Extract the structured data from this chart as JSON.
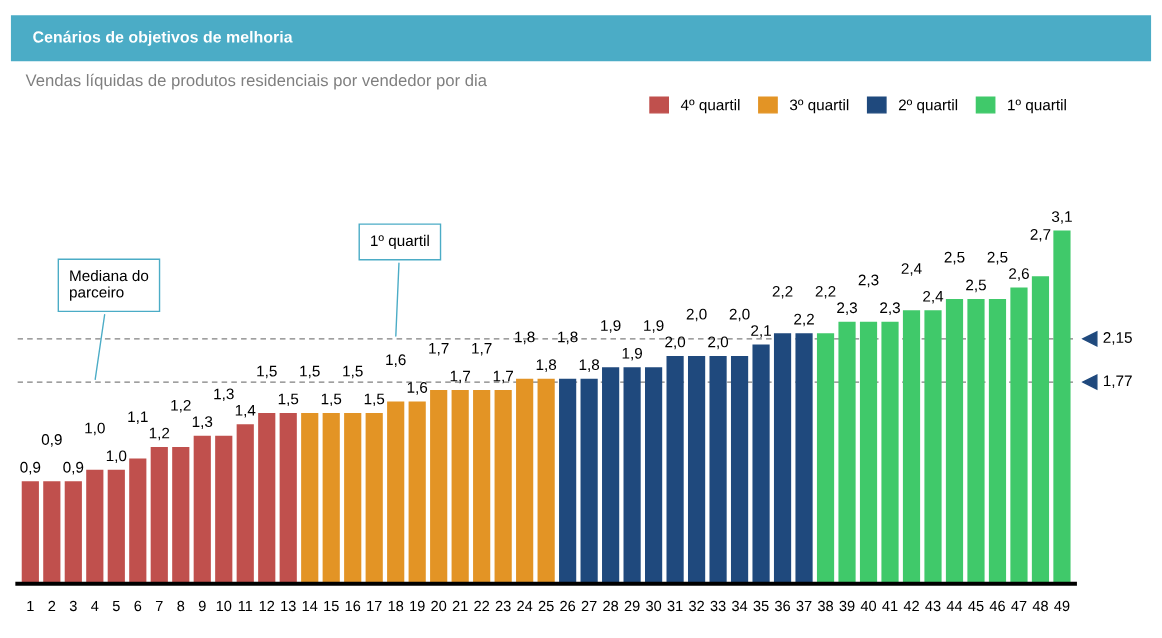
{
  "chart_data": {
    "type": "bar",
    "title": "Cenários de objetivos de melhoria",
    "subtitle": "Vendas líquidas de produtos residenciais por vendedor por dia",
    "categories": [
      "1",
      "2",
      "3",
      "4",
      "5",
      "6",
      "7",
      "8",
      "9",
      "10",
      "11",
      "12",
      "13",
      "14",
      "15",
      "16",
      "17",
      "18",
      "19",
      "20",
      "21",
      "22",
      "23",
      "24",
      "25",
      "26",
      "27",
      "28",
      "29",
      "30",
      "31",
      "32",
      "33",
      "34",
      "35",
      "36",
      "37",
      "38",
      "39",
      "40",
      "41",
      "42",
      "43",
      "44",
      "45",
      "46",
      "47",
      "48",
      "49"
    ],
    "series": [
      {
        "name": "4º quartil",
        "color": "#c0504d",
        "values": [
          0.9,
          0.9,
          0.9,
          1.0,
          1.0,
          1.1,
          1.2,
          1.2,
          1.3,
          1.3,
          1.4,
          1.5,
          1.5,
          null,
          null,
          null,
          null,
          null,
          null,
          null,
          null,
          null,
          null,
          null,
          null,
          null,
          null,
          null,
          null,
          null,
          null,
          null,
          null,
          null,
          null,
          null,
          null,
          null,
          null,
          null,
          null,
          null,
          null,
          null,
          null,
          null,
          null,
          null,
          null
        ],
        "value_labels": [
          "0,9",
          "0,9",
          "0,9",
          "1,0",
          "1,0",
          "1,1",
          "1,2",
          "1,2",
          "1,3",
          "1,3",
          "1,4",
          "1,5",
          "1,5",
          null,
          null,
          null,
          null,
          null,
          null,
          null,
          null,
          null,
          null,
          null,
          null,
          null,
          null,
          null,
          null,
          null,
          null,
          null,
          null,
          null,
          null,
          null,
          null,
          null,
          null,
          null,
          null,
          null,
          null,
          null,
          null,
          null,
          null,
          null,
          null
        ]
      },
      {
        "name": "3º quartil",
        "color": "#e39425",
        "values": [
          null,
          null,
          null,
          null,
          null,
          null,
          null,
          null,
          null,
          null,
          null,
          null,
          null,
          1.5,
          1.5,
          1.5,
          1.5,
          1.6,
          1.6,
          1.7,
          1.7,
          1.7,
          1.7,
          1.8,
          1.8,
          null,
          null,
          null,
          null,
          null,
          null,
          null,
          null,
          null,
          null,
          null,
          null,
          null,
          null,
          null,
          null,
          null,
          null,
          null,
          null,
          null,
          null,
          null,
          null
        ],
        "value_labels": [
          null,
          null,
          null,
          null,
          null,
          null,
          null,
          null,
          null,
          null,
          null,
          null,
          null,
          "1,5",
          "1,5",
          "1,5",
          "1,5",
          "1,6",
          "1,6",
          "1,7",
          "1,7",
          "1,7",
          "1,7",
          "1,8",
          "1,8",
          null,
          null,
          null,
          null,
          null,
          null,
          null,
          null,
          null,
          null,
          null,
          null,
          null,
          null,
          null,
          null,
          null,
          null,
          null,
          null,
          null,
          null,
          null,
          null
        ]
      },
      {
        "name": "2º quartil",
        "color": "#1f497d",
        "values": [
          null,
          null,
          null,
          null,
          null,
          null,
          null,
          null,
          null,
          null,
          null,
          null,
          null,
          null,
          null,
          null,
          null,
          null,
          null,
          null,
          null,
          null,
          null,
          null,
          null,
          1.8,
          1.8,
          1.9,
          1.9,
          1.9,
          2.0,
          2.0,
          2.0,
          2.0,
          2.1,
          2.2,
          2.2,
          null,
          null,
          null,
          null,
          null,
          null,
          null,
          null,
          null,
          null,
          null,
          null
        ],
        "value_labels": [
          null,
          null,
          null,
          null,
          null,
          null,
          null,
          null,
          null,
          null,
          null,
          null,
          null,
          null,
          null,
          null,
          null,
          null,
          null,
          null,
          null,
          null,
          null,
          null,
          null,
          "1,8",
          "1,8",
          "1,9",
          "1,9",
          "1,9",
          "2,0",
          "2,0",
          "2,0",
          "2,0",
          "2,1",
          "2,2",
          "2,2",
          null,
          null,
          null,
          null,
          null,
          null,
          null,
          null,
          null,
          null,
          null,
          null
        ]
      },
      {
        "name": "1º quartil",
        "color": "#40c96a",
        "values": [
          null,
          null,
          null,
          null,
          null,
          null,
          null,
          null,
          null,
          null,
          null,
          null,
          null,
          null,
          null,
          null,
          null,
          null,
          null,
          null,
          null,
          null,
          null,
          null,
          null,
          null,
          null,
          null,
          null,
          null,
          null,
          null,
          null,
          null,
          null,
          null,
          null,
          2.2,
          2.3,
          2.3,
          2.3,
          2.4,
          2.4,
          2.5,
          2.5,
          2.5,
          2.6,
          2.7,
          3.1
        ],
        "value_labels": [
          null,
          null,
          null,
          null,
          null,
          null,
          null,
          null,
          null,
          null,
          null,
          null,
          null,
          null,
          null,
          null,
          null,
          null,
          null,
          null,
          null,
          null,
          null,
          null,
          null,
          null,
          null,
          null,
          null,
          null,
          null,
          null,
          null,
          null,
          null,
          null,
          null,
          "2,2",
          "2,3",
          "2,3",
          "2,3",
          "2,4",
          "2,4",
          "2,5",
          "2,5",
          "2,5",
          "2,6",
          "2,7",
          "3,1"
        ]
      }
    ],
    "ref_lines": [
      {
        "axis": "y",
        "value": 2.15,
        "label": "2,15",
        "color": "#808080",
        "line_style": "dashed"
      },
      {
        "axis": "y",
        "value": 1.77,
        "label": "1,77",
        "color": "#808080",
        "line_style": "dashed"
      }
    ],
    "annotations": [
      {
        "text": "Mediana do\nparceiro",
        "x": "4",
        "y": 1.77
      },
      {
        "text": "1º quartil",
        "x": "18",
        "y": 2.15
      }
    ],
    "legend": "top right",
    "grid": false
  }
}
